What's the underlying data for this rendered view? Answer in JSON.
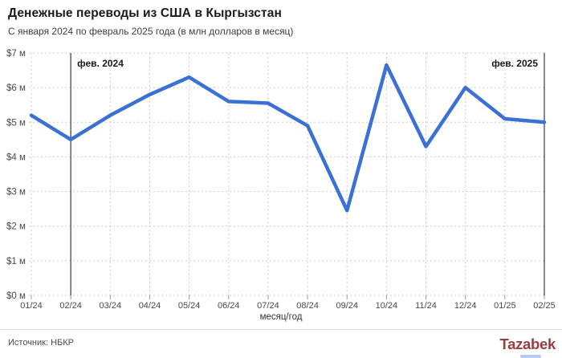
{
  "header": {
    "title": "Денежные переводы из США в Кыргызстан",
    "subtitle": "С января 2024 по февраль 2025 года (в млн долларов в месяц)"
  },
  "chart_data": {
    "type": "line",
    "title": "Денежные переводы из США в Кыргызстан",
    "subtitle": "С января 2024 по февраль 2025 года (в млн долларов в месяц)",
    "categories": [
      "01/24",
      "02/24",
      "03/24",
      "04/24",
      "05/24",
      "06/24",
      "07/24",
      "08/24",
      "09/24",
      "10/24",
      "11/24",
      "12/24",
      "01/25",
      "02/25"
    ],
    "values": [
      5.2,
      4.5,
      5.2,
      5.8,
      6.3,
      5.6,
      5.55,
      4.9,
      2.45,
      6.65,
      4.3,
      6.0,
      5.1,
      5.0
    ],
    "xlabel": "месяц/год",
    "ylabel": "",
    "ylim": [
      0,
      7
    ],
    "y_tick_labels": [
      "$0 м",
      "$1 м",
      "$2 м",
      "$3 м",
      "$4 м",
      "$5 м",
      "$6 м",
      "$7 м"
    ],
    "grid": true,
    "legend": "none",
    "annotations": [
      {
        "index": 1,
        "label": "фев. 2024",
        "side": "right"
      },
      {
        "index": 13,
        "label": "фев. 2025",
        "side": "left"
      }
    ]
  },
  "colors": {
    "line": "#3b70d5",
    "grid": "#cccccc",
    "tick": "#999999",
    "annotation_line": "#555555",
    "annotation_text": "#1a1a1a",
    "axis_text": "#4a4a4a",
    "logo": "#9d3c40",
    "accent_bar": "#aecdf2"
  },
  "footer": {
    "source": "Источник: НБКР",
    "logo": "Tazabek"
  }
}
